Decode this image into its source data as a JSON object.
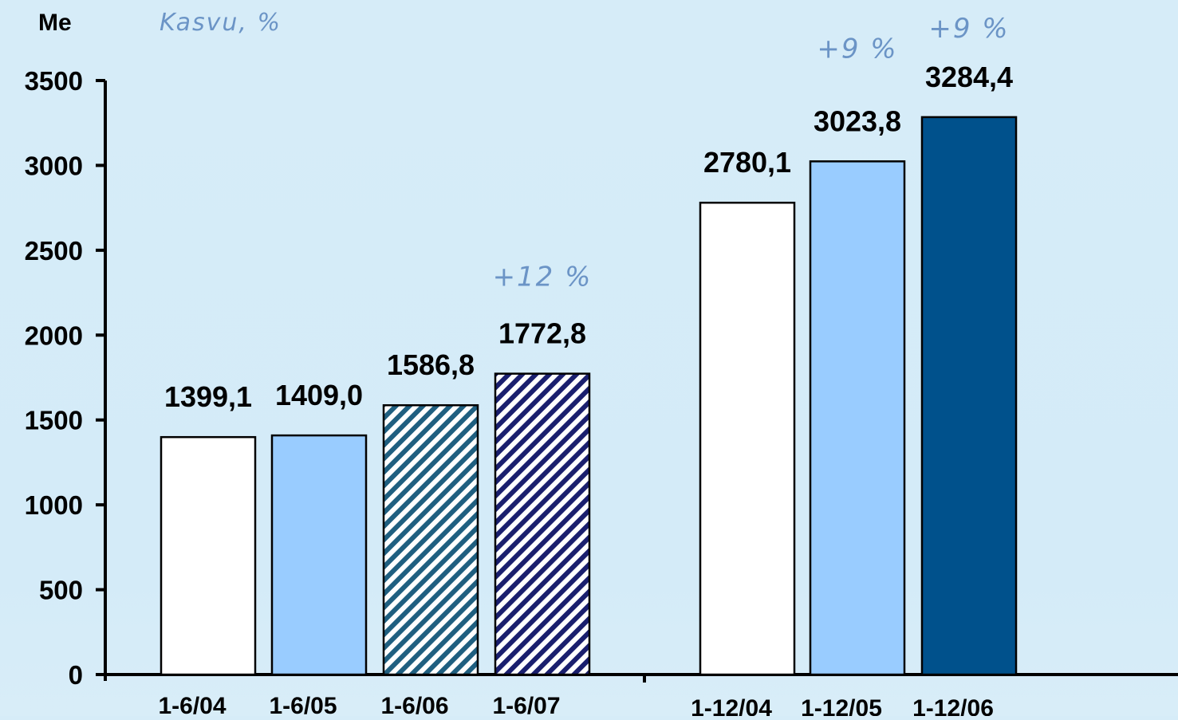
{
  "chart_data": {
    "type": "bar",
    "unit_label": "Me",
    "growth_title": "Kasvu, %",
    "ylim": [
      0,
      3500
    ],
    "yticks": [
      "0",
      "500",
      "1000",
      "1500",
      "2000",
      "2500",
      "3000",
      "3500"
    ],
    "categories": [
      "1-6/04",
      "1-6/05",
      "1-6/06",
      "1-6/07",
      "1-12/04",
      "1-12/05",
      "1-12/06"
    ],
    "values": [
      1399.1,
      1409.0,
      1586.8,
      1772.8,
      2780.1,
      3023.8,
      3284.4
    ],
    "value_labels": [
      "1399,1",
      "1409,0",
      "1586,8",
      "1772,8",
      "2780,1",
      "3023,8",
      "3284,4"
    ],
    "groups": [
      {
        "categories": [
          "1-6/04",
          "1-6/05",
          "1-6/06",
          "1-6/07"
        ]
      },
      {
        "categories": [
          "1-12/04",
          "1-12/05",
          "1-12/06"
        ]
      }
    ],
    "bar_styles": [
      "white",
      "lightblue",
      "hatch-teal",
      "hatch-navy",
      "white",
      "lightblue",
      "darkblue"
    ],
    "growth_labels": [
      {
        "category": "1-6/07",
        "text": "+12 %"
      },
      {
        "category": "1-12/05",
        "text": "+9 %"
      },
      {
        "category": "1-12/06",
        "text": "+9 %"
      }
    ],
    "colors": {
      "background": "#d5ebf8",
      "white_bar": "#ffffff",
      "light_blue": "#99ccff",
      "dark_blue": "#00518c",
      "hatch_teal": "#1f5f80",
      "hatch_navy": "#1a1f6e",
      "growth_text": "#6b94c6"
    },
    "grid": false,
    "legend": "none"
  }
}
